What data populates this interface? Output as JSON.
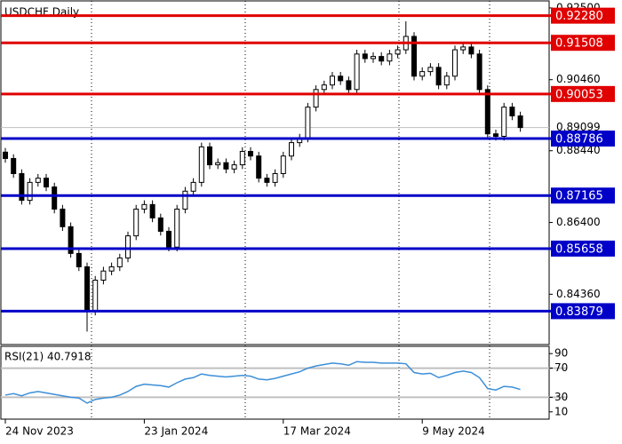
{
  "chart_data": [
    {
      "type": "candlestick",
      "title": "USDCHF,Daily",
      "ylim": [
        0.8293,
        0.927
      ],
      "yticks": [
        {
          "value": 0.925,
          "label": "0.92500"
        },
        {
          "value": 0.9046,
          "label": "0.90460"
        },
        {
          "value": 0.8844,
          "label": "0.88440"
        },
        {
          "value": 0.864,
          "label": "0.86400"
        },
        {
          "value": 0.8436,
          "label": "0.84360"
        }
      ],
      "levels": [
        {
          "value": 0.9228,
          "label": "0.92280",
          "color": "#e00000"
        },
        {
          "value": 0.91508,
          "label": "0.91508",
          "color": "#e00000"
        },
        {
          "value": 0.90053,
          "label": "0.90053",
          "color": "#e00000"
        },
        {
          "value": 0.88786,
          "label": "0.88786",
          "color": "#0000c8"
        },
        {
          "value": 0.87165,
          "label": "0.87165",
          "color": "#0000c8"
        },
        {
          "value": 0.85658,
          "label": "0.85658",
          "color": "#0000c8"
        },
        {
          "value": 0.83879,
          "label": "0.83879",
          "color": "#0000c8"
        }
      ],
      "current": {
        "value": 0.89099,
        "label": "0.89099"
      },
      "up_color": "#ffffff",
      "down_color": "#000000",
      "open": [
        0.884,
        0.8822,
        0.8779,
        0.8703,
        0.8754,
        0.8766,
        0.8741,
        0.8678,
        0.8628,
        0.8552,
        0.8514,
        0.8388,
        0.8476,
        0.8502,
        0.8514,
        0.8539,
        0.8602,
        0.8678,
        0.8691,
        0.8653,
        0.8615,
        0.857,
        0.8678,
        0.8729,
        0.8754,
        0.8855,
        0.8804,
        0.881,
        0.8792,
        0.8804,
        0.8842,
        0.8829,
        0.8766,
        0.8754,
        0.8779,
        0.8829,
        0.8867,
        0.888,
        0.8968,
        0.9018,
        0.9031,
        0.9056,
        0.9043,
        0.9018,
        0.9119,
        0.9106,
        0.9112,
        0.9099,
        0.9119,
        0.9131,
        0.9169,
        0.9056,
        0.9069,
        0.9081,
        0.9031,
        0.9056,
        0.9131,
        0.9139,
        0.9119,
        0.9018,
        0.8892,
        0.8885,
        0.8968,
        0.8943
      ],
      "high": [
        0.8852,
        0.8834,
        0.8791,
        0.8766,
        0.8778,
        0.8778,
        0.8753,
        0.869,
        0.864,
        0.8564,
        0.8526,
        0.8488,
        0.8514,
        0.8526,
        0.8551,
        0.8614,
        0.869,
        0.8703,
        0.8703,
        0.8665,
        0.8627,
        0.869,
        0.8741,
        0.8766,
        0.8867,
        0.8867,
        0.8822,
        0.8822,
        0.8816,
        0.8854,
        0.8854,
        0.8841,
        0.8778,
        0.8791,
        0.8841,
        0.8879,
        0.8892,
        0.898,
        0.903,
        0.9043,
        0.9068,
        0.9068,
        0.9055,
        0.9131,
        0.9131,
        0.9124,
        0.9124,
        0.9131,
        0.9143,
        0.9212,
        0.9181,
        0.9081,
        0.9093,
        0.9093,
        0.9068,
        0.9143,
        0.9151,
        0.9151,
        0.9131,
        0.903,
        0.8904,
        0.898,
        0.898,
        0.8955
      ],
      "low": [
        0.881,
        0.8767,
        0.8691,
        0.8691,
        0.8742,
        0.8729,
        0.8666,
        0.8616,
        0.854,
        0.8502,
        0.833,
        0.8376,
        0.8464,
        0.849,
        0.8502,
        0.8527,
        0.859,
        0.8666,
        0.8641,
        0.8603,
        0.8558,
        0.8558,
        0.8666,
        0.8717,
        0.8742,
        0.8792,
        0.8792,
        0.878,
        0.878,
        0.8792,
        0.8817,
        0.8754,
        0.8742,
        0.8742,
        0.8767,
        0.8817,
        0.8855,
        0.8868,
        0.8956,
        0.9006,
        0.9019,
        0.9031,
        0.9006,
        0.9006,
        0.9094,
        0.9094,
        0.9087,
        0.9087,
        0.9107,
        0.9119,
        0.9044,
        0.9044,
        0.9057,
        0.9019,
        0.9019,
        0.9044,
        0.9119,
        0.9107,
        0.9006,
        0.888,
        0.8873,
        0.8873,
        0.8931,
        0.8898
      ],
      "close": [
        0.8822,
        0.8779,
        0.8703,
        0.8754,
        0.8766,
        0.8741,
        0.8678,
        0.8628,
        0.8552,
        0.8514,
        0.8388,
        0.8476,
        0.8502,
        0.8514,
        0.8539,
        0.8602,
        0.8678,
        0.8691,
        0.8653,
        0.8615,
        0.857,
        0.8678,
        0.8729,
        0.8754,
        0.8855,
        0.8804,
        0.881,
        0.8792,
        0.8804,
        0.8842,
        0.8829,
        0.8766,
        0.8754,
        0.8779,
        0.8829,
        0.8867,
        0.888,
        0.8968,
        0.9018,
        0.9031,
        0.9056,
        0.9043,
        0.9018,
        0.9119,
        0.9106,
        0.9112,
        0.9099,
        0.9119,
        0.9131,
        0.9169,
        0.9056,
        0.9069,
        0.9081,
        0.9031,
        0.9056,
        0.9131,
        0.9139,
        0.9119,
        0.9018,
        0.8892,
        0.8885,
        0.8968,
        0.8943,
        0.891
      ]
    },
    {
      "type": "line",
      "title": "RSI(21) 40.7918",
      "color": "#3c8fd8",
      "ylim": [
        0,
        100
      ],
      "yticks": [
        90,
        70,
        30,
        10
      ],
      "levels": [
        70,
        30
      ],
      "xticks": [
        {
          "value": 0,
          "label": "24 Nov 2023"
        },
        {
          "value": 17,
          "label": "23 Jan 2024"
        },
        {
          "value": 34,
          "label": "17 Mar 2024"
        },
        {
          "value": 51,
          "label": "9 May 2024"
        }
      ],
      "values": [
        33,
        35,
        32,
        36,
        38,
        36,
        34,
        32,
        30,
        29,
        22,
        27,
        29,
        30,
        33,
        38,
        45,
        48,
        47,
        46,
        44,
        50,
        55,
        57,
        62,
        60,
        59,
        58,
        59,
        60,
        59,
        55,
        54,
        56,
        59,
        62,
        65,
        70,
        73,
        75,
        77,
        76,
        74,
        79,
        78,
        78,
        77,
        77,
        77,
        76,
        64,
        62,
        63,
        57,
        60,
        64,
        66,
        64,
        57,
        42,
        40,
        45,
        44,
        40.79
      ]
    }
  ]
}
